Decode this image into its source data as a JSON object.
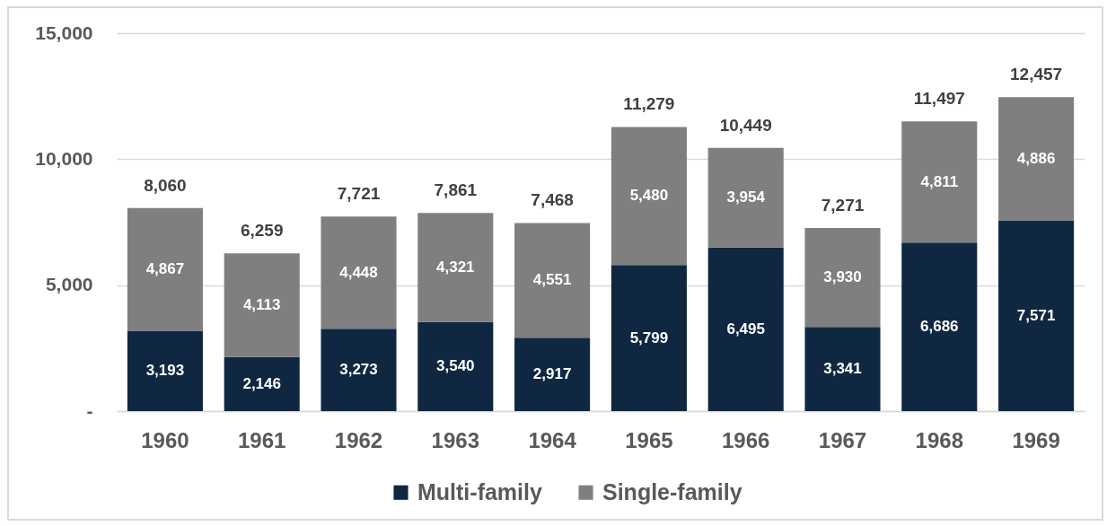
{
  "chart_data": {
    "type": "bar",
    "stacked": true,
    "categories": [
      "1960",
      "1961",
      "1962",
      "1963",
      "1964",
      "1965",
      "1966",
      "1967",
      "1968",
      "1969"
    ],
    "series": [
      {
        "name": "Multi-family",
        "color": "#0f2741",
        "values": [
          3193,
          2146,
          3273,
          3540,
          2917,
          5799,
          6495,
          3341,
          6686,
          7571
        ],
        "value_labels": [
          "3,193",
          "2,146",
          "3,273",
          "3,540",
          "2,917",
          "5,799",
          "6,495",
          "3,341",
          "6,686",
          "7,571"
        ]
      },
      {
        "name": "Single-family",
        "color": "#7f7f7f",
        "values": [
          4867,
          4113,
          4448,
          4321,
          4551,
          5480,
          3954,
          3930,
          4811,
          4886
        ],
        "value_labels": [
          "4,867",
          "4,113",
          "4,448",
          "4,321",
          "4,551",
          "5,480",
          "3,954",
          "3,930",
          "4,811",
          "4,886"
        ]
      }
    ],
    "totals": [
      "8,060",
      "6,259",
      "7,721",
      "7,861",
      "7,468",
      "11,279",
      "10,449",
      "7,271",
      "11,497",
      "12,457"
    ],
    "ylim": [
      0,
      15000
    ],
    "yticks": [
      {
        "value": 0,
        "label": "-"
      },
      {
        "value": 5000,
        "label": "5,000"
      },
      {
        "value": 10000,
        "label": "10,000"
      },
      {
        "value": 15000,
        "label": "15,000"
      }
    ],
    "grid": "y",
    "legend": "bottom"
  }
}
